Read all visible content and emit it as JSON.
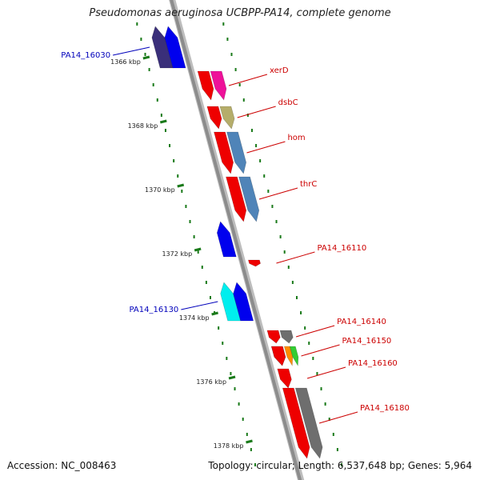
{
  "title": "Pseudomonas aeruginosa UCBPP-PA14, complete genome",
  "footer": {
    "accession": "Accession: NC_008463",
    "topology": "Topology: circular; Length: 6,537,648 bp; Genes: 5,964"
  },
  "ticks": [
    {
      "label": "1366 kbp",
      "kbp": 1366
    },
    {
      "label": "1368 kbp",
      "kbp": 1368
    },
    {
      "label": "1370 kbp",
      "kbp": 1370
    },
    {
      "label": "1372 kbp",
      "kbp": 1372
    },
    {
      "label": "1374 kbp",
      "kbp": 1374
    },
    {
      "label": "1376 kbp",
      "kbp": 1376
    },
    {
      "label": "1378 kbp",
      "kbp": 1378
    }
  ],
  "genes": [
    {
      "name": "PA14_16030",
      "strand": "-",
      "start_kbp": 1365.0,
      "end_kbp": 1366.3,
      "color": "#3a2f7a",
      "labeled": true
    },
    {
      "name": "",
      "strand": "-",
      "start_kbp": 1365.0,
      "end_kbp": 1366.3,
      "color": "#0000ee",
      "labeled": false
    },
    {
      "name": "xerD",
      "strand": "+",
      "start_kbp": 1366.4,
      "end_kbp": 1367.3,
      "color": "#ee1199",
      "labeled": true
    },
    {
      "name": "dsbC",
      "strand": "+",
      "start_kbp": 1367.5,
      "end_kbp": 1368.2,
      "color": "#b5ad6a",
      "labeled": true
    },
    {
      "name": "hom",
      "strand": "+",
      "start_kbp": 1368.3,
      "end_kbp": 1369.6,
      "color": "#4f84b8",
      "labeled": true
    },
    {
      "name": "thrC",
      "strand": "+",
      "start_kbp": 1369.7,
      "end_kbp": 1371.1,
      "color": "#4f84b8",
      "labeled": true
    },
    {
      "name": "",
      "strand": "-",
      "start_kbp": 1371.1,
      "end_kbp": 1372.2,
      "color": "#0000ee",
      "labeled": false
    },
    {
      "name": "PA14_16110",
      "strand": "+",
      "start_kbp": 1372.3,
      "end_kbp": 1372.5,
      "color": "#ee0000",
      "labeled": true
    },
    {
      "name": "PA14_16130",
      "strand": "-",
      "start_kbp": 1373.0,
      "end_kbp": 1374.2,
      "color": "#00eeee",
      "labeled": true
    },
    {
      "name": "",
      "strand": "-",
      "start_kbp": 1373.0,
      "end_kbp": 1374.2,
      "color": "#0000ee",
      "labeled": false
    },
    {
      "name": "PA14_16140",
      "strand": "+",
      "start_kbp": 1374.5,
      "end_kbp": 1374.9,
      "color": "#6e6e6e",
      "labeled": true
    },
    {
      "name": "PA14_16150",
      "strand": "+",
      "start_kbp": 1375.0,
      "end_kbp": 1375.6,
      "color": "#ff8c00",
      "labeled": true
    },
    {
      "name": "",
      "strand": "+",
      "start_kbp": 1375.0,
      "end_kbp": 1375.6,
      "color": "#33cc33",
      "labeled": false
    },
    {
      "name": "PA14_16160",
      "strand": "+",
      "start_kbp": 1375.7,
      "end_kbp": 1376.3,
      "color": "#ee0000",
      "labeled": true
    },
    {
      "name": "PA14_16180",
      "strand": "+",
      "start_kbp": 1376.3,
      "end_kbp": 1378.5,
      "color": "#6e6e6e",
      "labeled": true
    }
  ],
  "colors": {
    "backbone": "#8c8c8c",
    "cds": "#ee0000",
    "forward_label": "#cc0000",
    "reverse_label": "#0000bb",
    "tick_dots": "#1a7a1a"
  }
}
